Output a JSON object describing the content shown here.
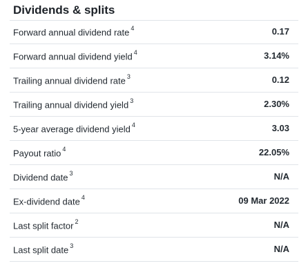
{
  "title": "Dividends & splits",
  "rows": [
    {
      "label": "Forward annual dividend rate",
      "note": "4",
      "value": "0.17"
    },
    {
      "label": "Forward annual dividend yield",
      "note": "4",
      "value": "3.14%"
    },
    {
      "label": "Trailing annual dividend rate",
      "note": "3",
      "value": "0.12"
    },
    {
      "label": "Trailing annual dividend yield",
      "note": "3",
      "value": "2.30%"
    },
    {
      "label": "5-year average dividend yield",
      "note": "4",
      "value": "3.03"
    },
    {
      "label": "Payout ratio",
      "note": "4",
      "value": "22.05%"
    },
    {
      "label": "Dividend date",
      "note": "3",
      "value": "N/A"
    },
    {
      "label": "Ex-dividend date",
      "note": "4",
      "value": "09 Mar 2022"
    },
    {
      "label": "Last split factor",
      "note": "2",
      "value": "N/A"
    },
    {
      "label": "Last split date",
      "note": "3",
      "value": "N/A"
    }
  ]
}
